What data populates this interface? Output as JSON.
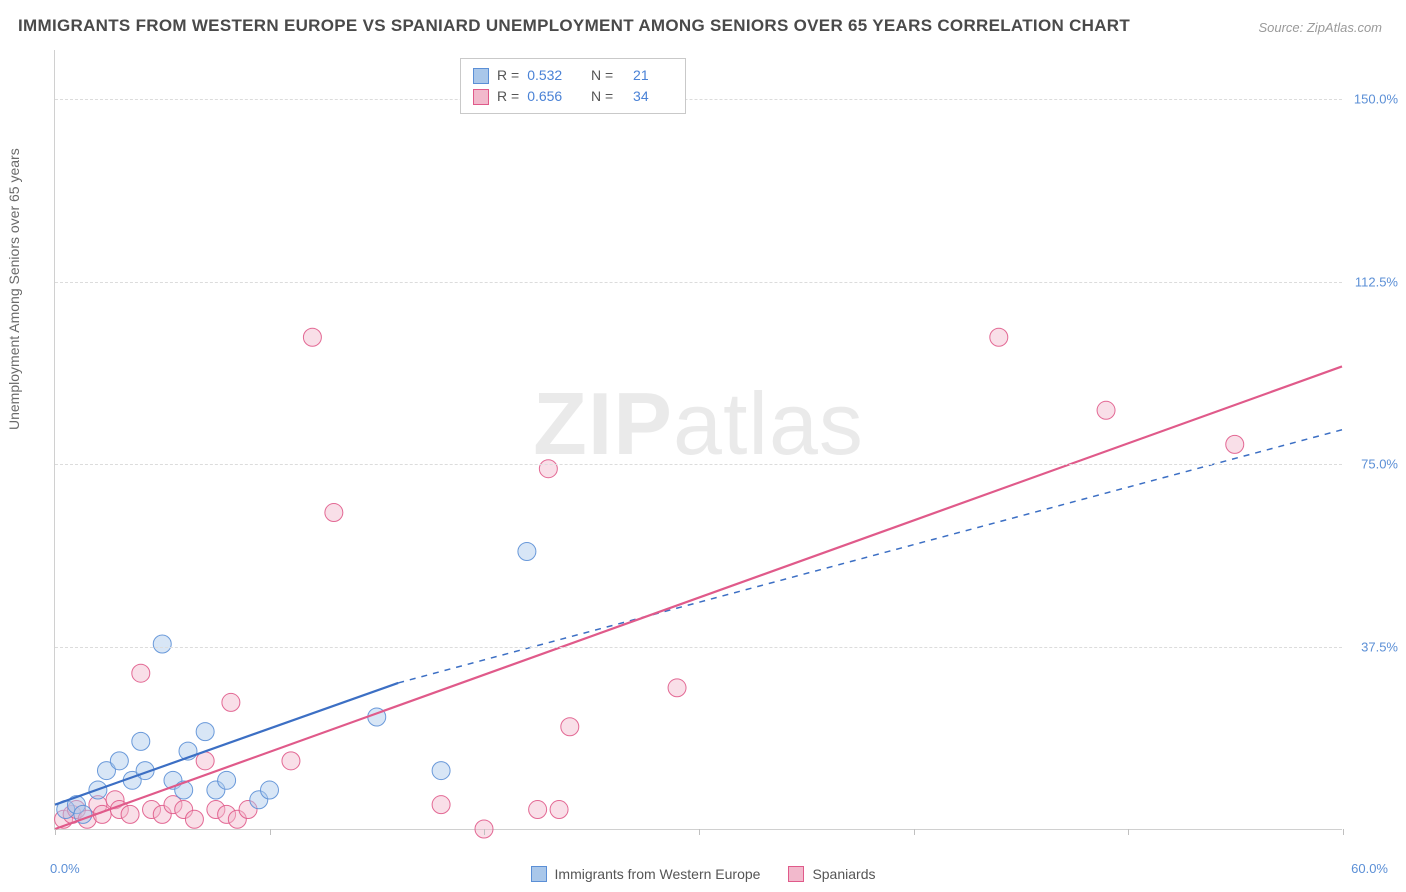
{
  "title": "IMMIGRANTS FROM WESTERN EUROPE VS SPANIARD UNEMPLOYMENT AMONG SENIORS OVER 65 YEARS CORRELATION CHART",
  "source": "Source: ZipAtlas.com",
  "y_axis_label": "Unemployment Among Seniors over 65 years",
  "watermark_bold": "ZIP",
  "watermark_light": "atlas",
  "chart": {
    "type": "scatter",
    "xlim": [
      0,
      60
    ],
    "ylim": [
      0,
      160
    ],
    "x_tick_positions": [
      0,
      10,
      20,
      30,
      40,
      50,
      60
    ],
    "y_ticks": [
      {
        "pos": 37.5,
        "label": "37.5%"
      },
      {
        "pos": 75.0,
        "label": "75.0%"
      },
      {
        "pos": 112.5,
        "label": "112.5%"
      },
      {
        "pos": 150.0,
        "label": "150.0%"
      }
    ],
    "x_origin_label": "0.0%",
    "x_max_label": "60.0%",
    "background_color": "#ffffff",
    "grid_color": "#dcdcdc",
    "axis_label_color": "#5b8fd6",
    "point_radius": 9,
    "point_opacity": 0.45,
    "point_stroke_opacity": 0.9,
    "line_width": 2.2,
    "series": [
      {
        "key": "immigrants",
        "label": "Immigrants from Western Europe",
        "fill": "#a9c7ea",
        "stroke": "#5b8fd6",
        "line_color": "#3c6fc4",
        "line_dash": "solid",
        "regression": {
          "x1": 0,
          "y1": 5,
          "x2": 16,
          "y2": 30
        },
        "dashed_extension": {
          "x1": 16,
          "y1": 30,
          "x2": 60,
          "y2": 82
        },
        "R_label": "R =",
        "R": "0.532",
        "N_label": "N =",
        "N": "21",
        "points": [
          {
            "x": 0.5,
            "y": 4
          },
          {
            "x": 1,
            "y": 5
          },
          {
            "x": 1.3,
            "y": 3
          },
          {
            "x": 2,
            "y": 8
          },
          {
            "x": 2.4,
            "y": 12
          },
          {
            "x": 3,
            "y": 14
          },
          {
            "x": 3.6,
            "y": 10
          },
          {
            "x": 4,
            "y": 18
          },
          {
            "x": 4.2,
            "y": 12
          },
          {
            "x": 5,
            "y": 38
          },
          {
            "x": 5.5,
            "y": 10
          },
          {
            "x": 6,
            "y": 8
          },
          {
            "x": 6.2,
            "y": 16
          },
          {
            "x": 7,
            "y": 20
          },
          {
            "x": 7.5,
            "y": 8
          },
          {
            "x": 8,
            "y": 10
          },
          {
            "x": 9.5,
            "y": 6
          },
          {
            "x": 10,
            "y": 8
          },
          {
            "x": 15,
            "y": 23
          },
          {
            "x": 18,
            "y": 12
          },
          {
            "x": 22,
            "y": 57
          }
        ]
      },
      {
        "key": "spaniards",
        "label": "Spaniards",
        "fill": "#f2b9cc",
        "stroke": "#e05a8a",
        "line_color": "#e05a8a",
        "line_dash": "solid",
        "regression": {
          "x1": 0,
          "y1": 0,
          "x2": 60,
          "y2": 95
        },
        "R_label": "R =",
        "R": "0.656",
        "N_label": "N =",
        "N": "34",
        "points": [
          {
            "x": 0.4,
            "y": 2
          },
          {
            "x": 0.8,
            "y": 3
          },
          {
            "x": 1,
            "y": 4
          },
          {
            "x": 1.5,
            "y": 2
          },
          {
            "x": 2,
            "y": 5
          },
          {
            "x": 2.2,
            "y": 3
          },
          {
            "x": 2.8,
            "y": 6
          },
          {
            "x": 3,
            "y": 4
          },
          {
            "x": 3.5,
            "y": 3
          },
          {
            "x": 4,
            "y": 32
          },
          {
            "x": 4.5,
            "y": 4
          },
          {
            "x": 5,
            "y": 3
          },
          {
            "x": 5.5,
            "y": 5
          },
          {
            "x": 6,
            "y": 4
          },
          {
            "x": 6.5,
            "y": 2
          },
          {
            "x": 7,
            "y": 14
          },
          {
            "x": 7.5,
            "y": 4
          },
          {
            "x": 8,
            "y": 3
          },
          {
            "x": 8.2,
            "y": 26
          },
          {
            "x": 8.5,
            "y": 2
          },
          {
            "x": 9,
            "y": 4
          },
          {
            "x": 11,
            "y": 14
          },
          {
            "x": 12,
            "y": 101
          },
          {
            "x": 13,
            "y": 65
          },
          {
            "x": 18,
            "y": 5
          },
          {
            "x": 20,
            "y": 0
          },
          {
            "x": 22.5,
            "y": 4
          },
          {
            "x": 23,
            "y": 74
          },
          {
            "x": 23.5,
            "y": 4
          },
          {
            "x": 24,
            "y": 21
          },
          {
            "x": 29,
            "y": 29
          },
          {
            "x": 44,
            "y": 101
          },
          {
            "x": 49,
            "y": 86
          },
          {
            "x": 55,
            "y": 79
          }
        ]
      }
    ]
  },
  "bottom_legend": {
    "items": [
      "immigrants",
      "spaniards"
    ]
  }
}
